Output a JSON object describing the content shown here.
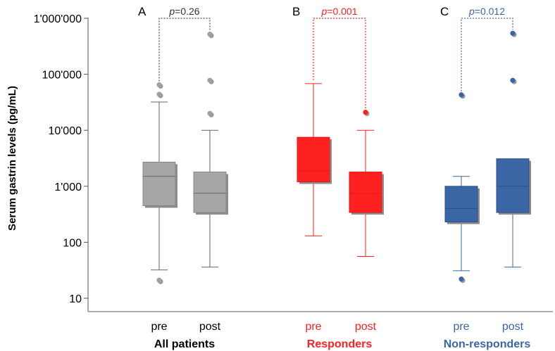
{
  "chart_data": {
    "type": "box",
    "ylabel": "Serum gastrin levels (pg/mL)",
    "yscale": "log",
    "ylim": [
      10,
      1000000
    ],
    "yticks": [
      {
        "value": 10,
        "label": "10"
      },
      {
        "value": 100,
        "label": "100"
      },
      {
        "value": 1000,
        "label": "1'000"
      },
      {
        "value": 10000,
        "label": "10'000"
      },
      {
        "value": 100000,
        "label": "100'000"
      },
      {
        "value": 1000000,
        "label": "1'000'000"
      }
    ],
    "groups": [
      {
        "panel": "A",
        "name": "All patients",
        "color": "#a6a6a6",
        "accent": "#000000",
        "label_color": "#000000",
        "pvalue_prefix": "p",
        "pvalue_rest": "=0.26",
        "pvalue_color": "#333333",
        "boxes": [
          {
            "label": "pre",
            "min": 32,
            "q1": 450,
            "median": 1500,
            "q3": 2700,
            "max": 32000,
            "outliers": [
              21,
              44000,
              65000
            ]
          },
          {
            "label": "post",
            "min": 36,
            "q1": 340,
            "median": 750,
            "q3": 1800,
            "max": 10000,
            "outliers": [
              20000,
              78000,
              520000
            ]
          }
        ]
      },
      {
        "panel": "B",
        "name": "Responders",
        "color": "#ff2020",
        "accent": "#e31b1b",
        "label_color": "#ff2020",
        "pvalue_prefix": "p",
        "pvalue_rest": "=0.001",
        "pvalue_color": "#ff2020",
        "boxes": [
          {
            "label": "pre",
            "min": 130,
            "q1": 1200,
            "median": 1900,
            "q3": 7500,
            "max": 68000,
            "outliers": []
          },
          {
            "label": "post",
            "min": 56,
            "q1": 340,
            "median": 750,
            "q3": 1800,
            "max": 10000,
            "outliers": [
              21000
            ]
          }
        ]
      },
      {
        "panel": "C",
        "name": "Non-responders",
        "color": "#3a66a5",
        "accent": "#2c5189",
        "label_color": "#3a66a5",
        "pvalue_prefix": "p",
        "pvalue_rest": "=0.012",
        "pvalue_color": "#3a66a5",
        "boxes": [
          {
            "label": "pre",
            "min": 31,
            "q1": 230,
            "median": 400,
            "q3": 1000,
            "max": 1500,
            "outliers": [
              22,
              43000
            ]
          },
          {
            "label": "post",
            "min": 36,
            "q1": 340,
            "median": 1000,
            "q3": 3100,
            "max": null,
            "outliers": [
              78000,
              540000
            ]
          }
        ]
      }
    ]
  }
}
